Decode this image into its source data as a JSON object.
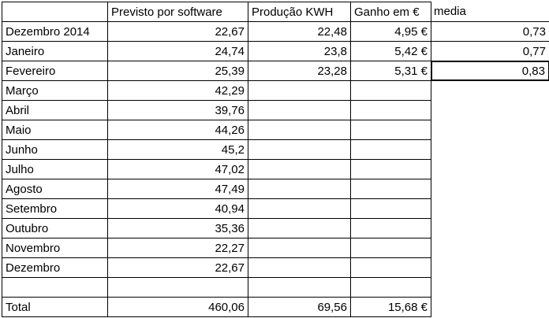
{
  "table": {
    "rows": [
      [
        null,
        "Previsto por software",
        "Produção KWH",
        "Ganho em €",
        "media"
      ],
      [
        "Dezembro 2014",
        "22,67",
        "22,48",
        "4,95 €",
        "0,73"
      ],
      [
        "Janeiro",
        "24,74",
        "23,8",
        "5,42 €",
        "0,77"
      ],
      [
        "Fevereiro",
        "25,39",
        "23,28",
        "5,31 €",
        "0,83"
      ],
      [
        "Março",
        "42,29",
        null,
        null,
        null
      ],
      [
        "Abril",
        "39,76",
        null,
        null,
        null
      ],
      [
        "Maio",
        "44,26",
        null,
        null,
        null
      ],
      [
        "Junho",
        "45,2",
        null,
        null,
        null
      ],
      [
        "Julho",
        "47,02",
        null,
        null,
        null
      ],
      [
        "Agosto",
        "47,49",
        null,
        null,
        null
      ],
      [
        "Setembro",
        "40,94",
        null,
        null,
        null
      ],
      [
        "Outubro",
        "35,36",
        null,
        null,
        null
      ],
      [
        "Novembro",
        "22,27",
        null,
        null,
        null
      ],
      [
        "Dezembro",
        "22,67",
        null,
        null,
        null
      ],
      [
        null,
        null,
        null,
        null,
        null
      ],
      [
        "Total",
        "460,06",
        "69,56",
        "15,68 €",
        null
      ]
    ]
  }
}
